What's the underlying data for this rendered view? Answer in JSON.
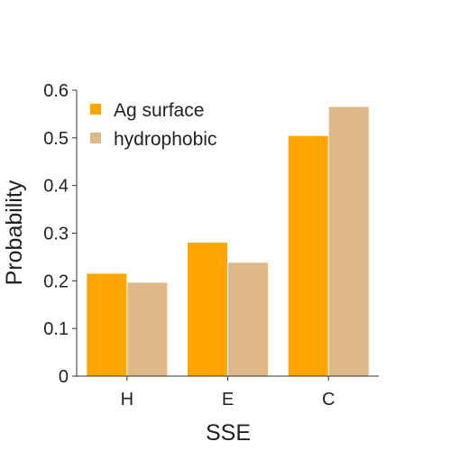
{
  "chart_data": {
    "type": "bar",
    "title": "",
    "xlabel": "SSE",
    "ylabel": "Probability",
    "categories": [
      "H",
      "E",
      "C"
    ],
    "series": [
      {
        "name": "Ag surface",
        "values": [
          0.215,
          0.28,
          0.504
        ],
        "color": "#ffa500"
      },
      {
        "name": "hydrophobic",
        "values": [
          0.196,
          0.238,
          0.565
        ],
        "color": "#deb887"
      }
    ],
    "ylim": [
      0,
      0.6
    ],
    "yticks": [
      "0",
      "0.1",
      "0.2",
      "0.3",
      "0.4",
      "0.5",
      "0.6"
    ],
    "grid": false,
    "legend": "top-left"
  }
}
